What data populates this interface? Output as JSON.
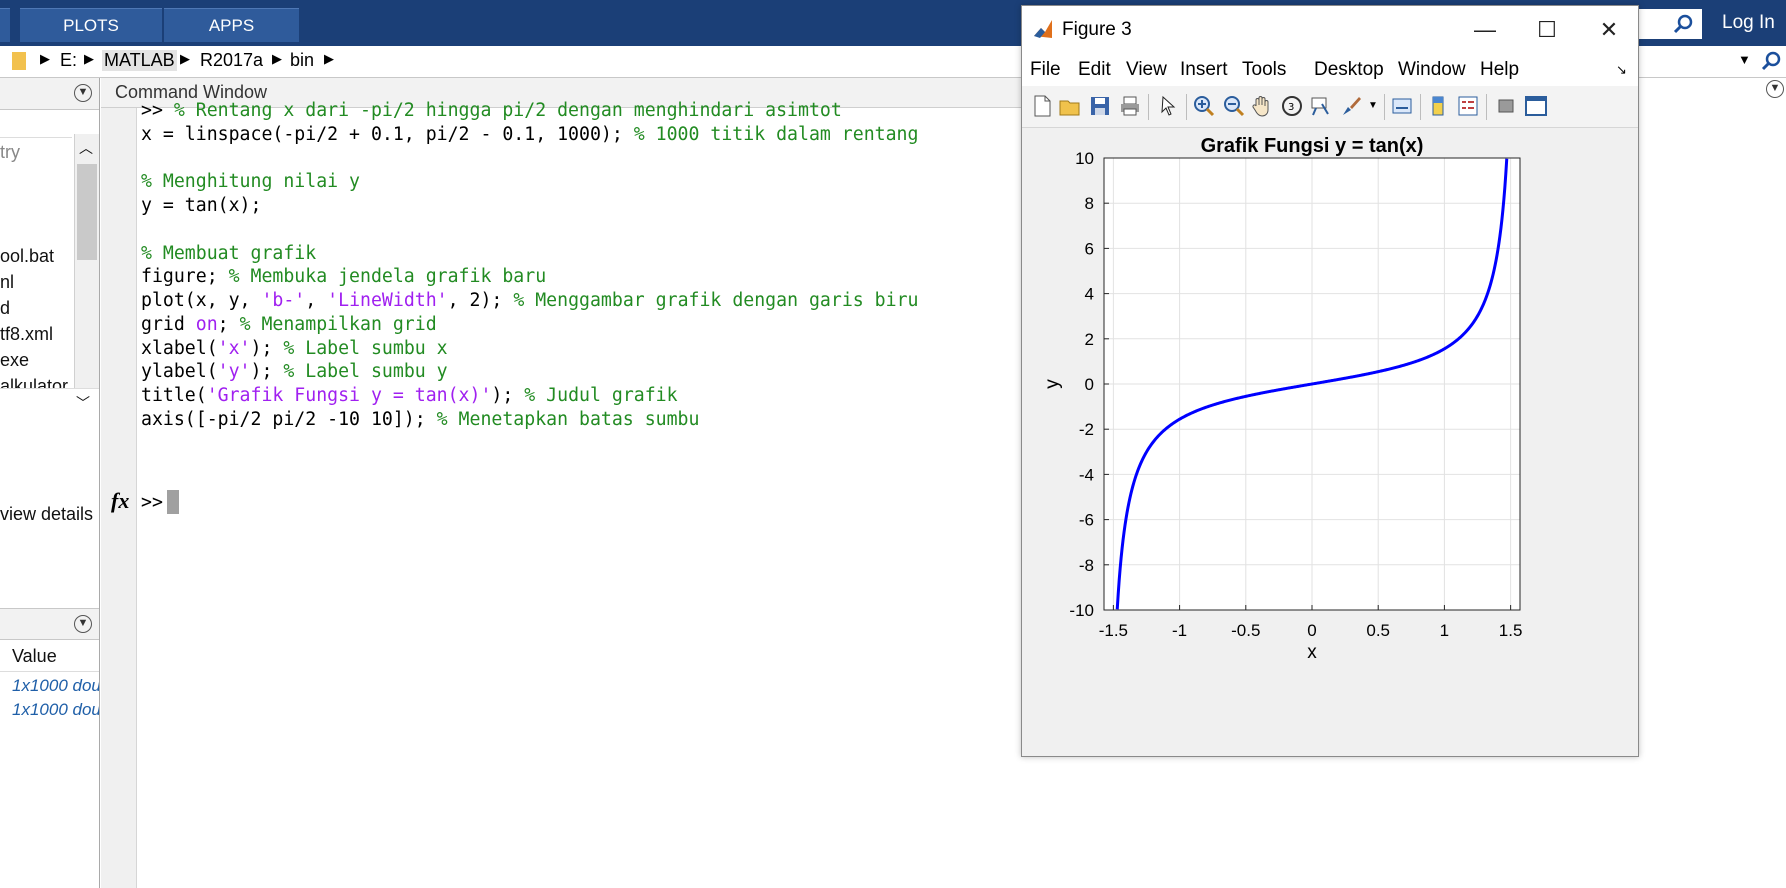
{
  "ribbon": {
    "tabs": [
      "PLOTS",
      "APPS"
    ],
    "login_label": "Log In"
  },
  "address_bar": {
    "segments": [
      "E:",
      "MATLAB",
      "R2017a",
      "bin"
    ]
  },
  "left_panel": {
    "files": [
      "try",
      "ool.bat",
      "nl",
      "d",
      "tf8.xml",
      "exe",
      "alkulator"
    ],
    "details_text": "view details",
    "workspace_header": "Value",
    "workspace_values": [
      "1x1000 dou",
      "1x1000 dou"
    ]
  },
  "command_window": {
    "title": "Command Window",
    "prompt": ">>",
    "lines": [
      {
        "code": ">> ",
        "comment": "% Rentang x dari -pi/2 hingga pi/2 dengan menghindari asimtot"
      },
      {
        "code": "x = linspace(-pi/2 + 0.1, pi/2 - 0.1, 1000); ",
        "comment": "% 1000 titik dalam rentang"
      },
      {
        "code": "",
        "comment": ""
      },
      {
        "code": "",
        "comment": "% Menghitung nilai y"
      },
      {
        "code": "y = tan(x);",
        "comment": ""
      },
      {
        "code": "",
        "comment": ""
      },
      {
        "code": "",
        "comment": "% Membuat grafik"
      },
      {
        "code": "figure; ",
        "comment": "% Membuka jendela grafik baru"
      },
      {
        "code": "plot(x, y, 'b-', 'LineWidth', 2); ",
        "comment": "% Menggambar grafik dengan garis biru"
      },
      {
        "code": "grid on; ",
        "comment": "% Menampilkan grid"
      },
      {
        "code": "xlabel('x'); ",
        "comment": "% Label sumbu x"
      },
      {
        "code": "ylabel('y'); ",
        "comment": "% Label sumbu y"
      },
      {
        "code": "title('Grafik Fungsi y = tan(x)'); ",
        "comment": "% Judul grafik"
      },
      {
        "code": "axis([-pi/2 pi/2 -10 10]); ",
        "comment": "% Menetapkan batas sumbu"
      }
    ]
  },
  "figure_window": {
    "title": "Figure 3",
    "menu": [
      "File",
      "Edit",
      "View",
      "Insert",
      "Tools",
      "Desktop",
      "Window",
      "Help"
    ]
  },
  "colors": {
    "ribbon": "#1b3f77",
    "comment": "#228b22",
    "string": "#a020f0",
    "plot_line": "#0000ff"
  },
  "chart_data": {
    "type": "line",
    "title": "Grafik Fungsi y = tan(x)",
    "xlabel": "x",
    "ylabel": "y",
    "xlim": [
      -1.5708,
      1.5708
    ],
    "ylim": [
      -10,
      10
    ],
    "x_ticks": [
      "-1.5",
      "-1",
      "-0.5",
      "0",
      "0.5",
      "1",
      "1.5"
    ],
    "y_ticks": [
      "-10",
      "-8",
      "-6",
      "-4",
      "-2",
      "0",
      "2",
      "4",
      "6",
      "8",
      "10"
    ],
    "grid": true,
    "series": [
      {
        "function": "tan(x)",
        "x_range": [
          -1.4708,
          1.4708
        ],
        "points": 1000,
        "color": "#0000ff",
        "x": [
          -1.4708,
          -1.45,
          -1.4,
          -1.35,
          -1.3,
          -1.25,
          -1.2,
          -1.1,
          -1.0,
          -0.8,
          -0.6,
          -0.4,
          -0.2,
          0,
          0.2,
          0.4,
          0.6,
          0.8,
          1.0,
          1.1,
          1.2,
          1.25,
          1.3,
          1.35,
          1.4,
          1.45,
          1.4708
        ],
        "y": [
          -9.97,
          -8.24,
          -5.8,
          -4.46,
          -3.6,
          -3.01,
          -2.57,
          -1.96,
          -1.56,
          -1.03,
          -0.68,
          -0.42,
          -0.2,
          0,
          0.2,
          0.42,
          0.68,
          1.03,
          1.56,
          1.96,
          2.57,
          3.01,
          3.6,
          4.46,
          5.8,
          8.24,
          9.97
        ]
      }
    ]
  }
}
